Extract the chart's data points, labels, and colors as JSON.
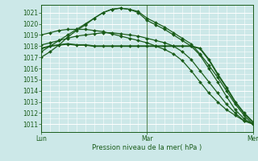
{
  "bg_color": "#cce8e8",
  "grid_color": "#ffffff",
  "line_color": "#1a5c1a",
  "xlabel": "Pression niveau de la mer( hPa )",
  "yticks": [
    1011,
    1012,
    1013,
    1014,
    1015,
    1016,
    1017,
    1018,
    1019,
    1020,
    1021
  ],
  "ylim": [
    1010.3,
    1021.7
  ],
  "xlim": [
    0,
    48
  ],
  "xtick_positions": [
    0,
    24,
    48
  ],
  "xtick_labels": [
    "Lun",
    "Mar",
    "Mer"
  ],
  "vlines": [
    0,
    24,
    48
  ],
  "series": [
    {
      "x": [
        0,
        2,
        4,
        6,
        8,
        10,
        12,
        14,
        16,
        18,
        20,
        22,
        24,
        26,
        28,
        30,
        32,
        34,
        36,
        38,
        40,
        42,
        44,
        46,
        48
      ],
      "y": [
        1017.0,
        1017.5,
        1018.1,
        1018.8,
        1019.4,
        1019.9,
        1020.5,
        1021.0,
        1021.3,
        1021.4,
        1021.3,
        1021.1,
        1020.5,
        1020.1,
        1019.7,
        1019.2,
        1018.7,
        1018.2,
        1017.3,
        1016.3,
        1015.2,
        1014.0,
        1012.8,
        1011.8,
        1011.0
      ],
      "marker": "D",
      "ms": 2.0,
      "lw": 0.9
    },
    {
      "x": [
        0,
        2,
        4,
        6,
        8,
        10,
        12,
        14,
        16,
        18,
        20,
        22,
        24,
        26,
        28,
        30,
        32,
        34,
        36,
        38,
        40,
        42,
        44,
        46,
        48
      ],
      "y": [
        1017.5,
        1018.0,
        1018.5,
        1019.0,
        1019.5,
        1020.0,
        1020.5,
        1021.0,
        1021.3,
        1021.4,
        1021.3,
        1021.0,
        1020.3,
        1019.9,
        1019.5,
        1019.0,
        1018.5,
        1018.0,
        1017.2,
        1016.0,
        1014.8,
        1013.5,
        1012.3,
        1011.5,
        1011.0
      ],
      "marker": "D",
      "ms": 2.0,
      "lw": 0.9
    },
    {
      "x": [
        0,
        2,
        4,
        6,
        8,
        10,
        12,
        14,
        16,
        18,
        20,
        22,
        24,
        26,
        28,
        30,
        32,
        34,
        36,
        38,
        40,
        42,
        44,
        46,
        48
      ],
      "y": [
        1017.8,
        1018.0,
        1018.1,
        1018.2,
        1018.1,
        1018.1,
        1018.0,
        1018.0,
        1018.0,
        1018.0,
        1018.0,
        1018.0,
        1018.0,
        1018.0,
        1018.0,
        1018.0,
        1018.0,
        1018.0,
        1017.8,
        1016.8,
        1015.5,
        1014.3,
        1013.0,
        1012.0,
        1011.2
      ],
      "marker": "D",
      "ms": 2.0,
      "lw": 1.4
    },
    {
      "x": [
        0,
        2,
        4,
        6,
        8,
        10,
        12,
        14,
        16,
        18,
        20,
        22,
        24,
        26,
        28,
        30,
        32,
        34,
        36,
        38,
        40,
        42,
        44,
        46,
        48
      ],
      "y": [
        1018.1,
        1018.3,
        1018.5,
        1018.7,
        1018.9,
        1019.0,
        1019.1,
        1019.2,
        1019.2,
        1019.1,
        1019.0,
        1018.9,
        1018.7,
        1018.5,
        1018.3,
        1018.0,
        1017.5,
        1016.8,
        1015.8,
        1014.8,
        1013.8,
        1012.8,
        1012.0,
        1011.3,
        1011.1
      ],
      "marker": "D",
      "ms": 2.0,
      "lw": 0.9
    },
    {
      "x": [
        0,
        2,
        4,
        6,
        8,
        10,
        12,
        14,
        16,
        18,
        20,
        22,
        24,
        26,
        28,
        30,
        32,
        34,
        36,
        38,
        40,
        42,
        44,
        46,
        48
      ],
      "y": [
        1019.0,
        1019.2,
        1019.4,
        1019.5,
        1019.5,
        1019.5,
        1019.4,
        1019.3,
        1019.1,
        1018.9,
        1018.7,
        1018.5,
        1018.3,
        1018.0,
        1017.7,
        1017.3,
        1016.7,
        1015.8,
        1014.8,
        1013.8,
        1013.0,
        1012.3,
        1011.8,
        1011.3,
        1011.0
      ],
      "marker": "D",
      "ms": 2.0,
      "lw": 0.9
    }
  ]
}
